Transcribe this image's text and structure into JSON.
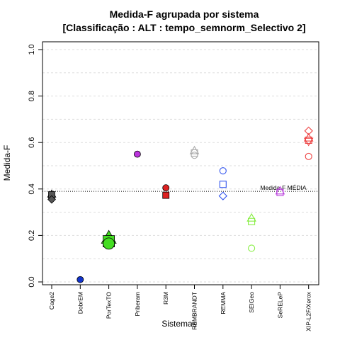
{
  "chart_data": {
    "type": "scatter",
    "title": "Medida-F agrupada por sistema",
    "subtitle": "[Classificação : ALT : tempo_semnorm_Selectivo 2]",
    "xlabel": "Sistemas",
    "ylabel": "Medida-F",
    "ylim": [
      0.0,
      1.0
    ],
    "yticks": [
      "0.0",
      "0.2",
      "0.4",
      "0.6",
      "0.8",
      "1.0"
    ],
    "ytick_values": [
      0.0,
      0.2,
      0.4,
      0.6,
      0.8,
      1.0
    ],
    "grid": true,
    "categories": [
      "Cage2",
      "DobrEM",
      "PorTexTO",
      "Priberam",
      "R3M",
      "REMBRANDT",
      "REMMA",
      "SEIGeo",
      "SeRELeP",
      "XIP-L2F/Xerox"
    ],
    "reference_line": {
      "label": "Medida-F MÉDIA",
      "value": 0.39
    },
    "points": [
      {
        "category": "Cage2",
        "y": 0.378,
        "shape": "triangle",
        "color": "#555555",
        "filled": true
      },
      {
        "category": "Cage2",
        "y": 0.375,
        "shape": "square",
        "color": "#555555",
        "filled": true
      },
      {
        "category": "Cage2",
        "y": 0.355,
        "shape": "diamond",
        "color": "#555555",
        "filled": true
      },
      {
        "category": "DobrEM",
        "y": 0.01,
        "shape": "circle",
        "color": "#1133cc",
        "filled": true
      },
      {
        "category": "PorTexTO",
        "y": 0.19,
        "shape": "triangle",
        "color": "#44dd22",
        "filled": true,
        "large": true
      },
      {
        "category": "PorTexTO",
        "y": 0.175,
        "shape": "square",
        "color": "#44dd22",
        "filled": true,
        "large": true
      },
      {
        "category": "PorTexTO",
        "y": 0.165,
        "shape": "circle",
        "color": "#44dd22",
        "filled": true,
        "large": true
      },
      {
        "category": "Priberam",
        "y": 0.55,
        "shape": "circle",
        "color": "#bb33dd",
        "filled": true
      },
      {
        "category": "R3M",
        "y": 0.405,
        "shape": "circle",
        "color": "#dd2222",
        "filled": true
      },
      {
        "category": "R3M",
        "y": 0.373,
        "shape": "square",
        "color": "#dd2222",
        "filled": true
      },
      {
        "category": "REMBRANDT",
        "y": 0.565,
        "shape": "triangle",
        "color": "#aaaaaa",
        "filled": false
      },
      {
        "category": "REMBRANDT",
        "y": 0.555,
        "shape": "square",
        "color": "#aaaaaa",
        "filled": false
      },
      {
        "category": "REMBRANDT",
        "y": 0.545,
        "shape": "circle",
        "color": "#aaaaaa",
        "filled": false
      },
      {
        "category": "REMMA",
        "y": 0.478,
        "shape": "circle",
        "color": "#3355ee",
        "filled": false
      },
      {
        "category": "REMMA",
        "y": 0.42,
        "shape": "square",
        "color": "#3355ee",
        "filled": false
      },
      {
        "category": "REMMA",
        "y": 0.37,
        "shape": "diamond",
        "color": "#3355ee",
        "filled": false
      },
      {
        "category": "SEIGeo",
        "y": 0.275,
        "shape": "triangle",
        "color": "#88ee44",
        "filled": false
      },
      {
        "category": "SEIGeo",
        "y": 0.26,
        "shape": "square",
        "color": "#88ee44",
        "filled": false
      },
      {
        "category": "SEIGeo",
        "y": 0.145,
        "shape": "circle",
        "color": "#88ee44",
        "filled": false
      },
      {
        "category": "SeRELeP",
        "y": 0.392,
        "shape": "triangle",
        "color": "#bb44dd",
        "filled": false
      },
      {
        "category": "SeRELeP",
        "y": 0.385,
        "shape": "square",
        "color": "#bb44dd",
        "filled": false
      },
      {
        "category": "XIP-L2F/Xerox",
        "y": 0.65,
        "shape": "diamond",
        "color": "#ee4444",
        "filled": false
      },
      {
        "category": "XIP-L2F/Xerox",
        "y": 0.62,
        "shape": "triangle",
        "color": "#ee4444",
        "filled": false
      },
      {
        "category": "XIP-L2F/Xerox",
        "y": 0.605,
        "shape": "triangle-down",
        "color": "#ee4444",
        "filled": false
      },
      {
        "category": "XIP-L2F/Xerox",
        "y": 0.61,
        "shape": "square",
        "color": "#ee4444",
        "filled": false
      },
      {
        "category": "XIP-L2F/Xerox",
        "y": 0.54,
        "shape": "circle",
        "color": "#ee4444",
        "filled": false
      }
    ]
  }
}
